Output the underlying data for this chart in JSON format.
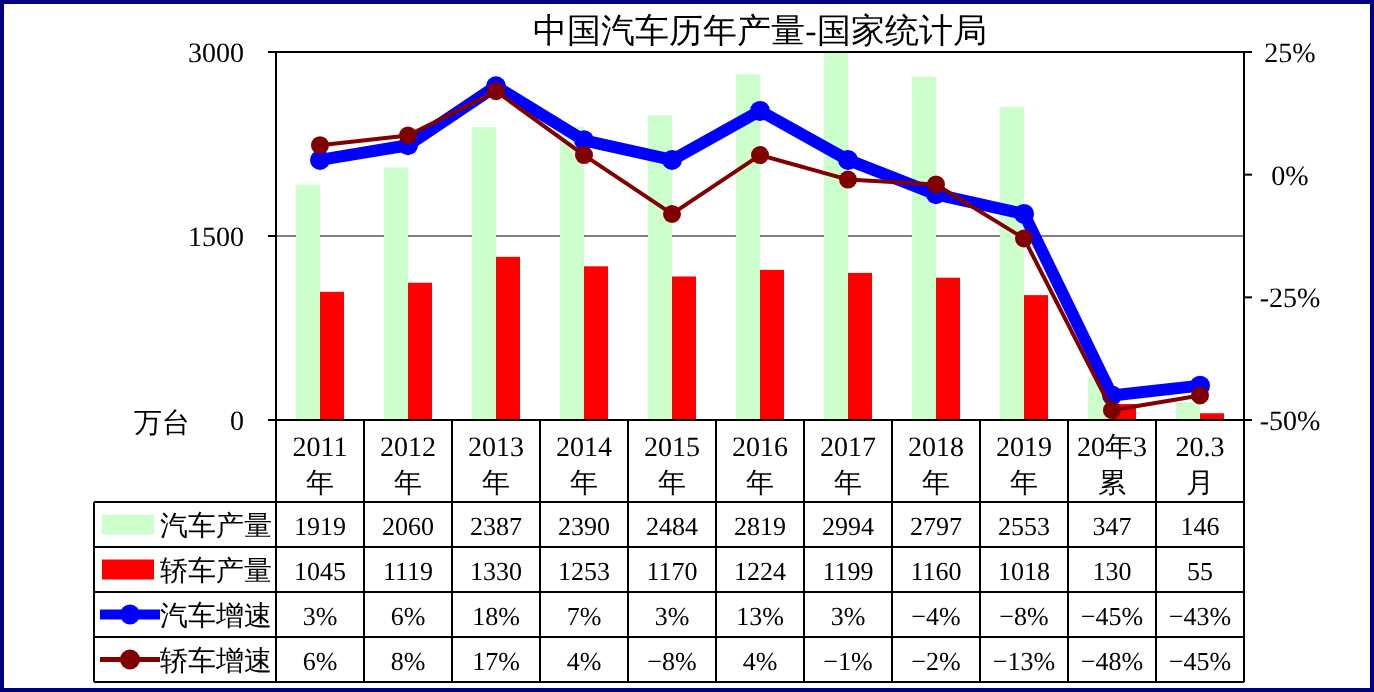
{
  "chart_data": {
    "type": "bar",
    "title": "中国汽车历年产量-国家统计局",
    "ylabel": "万台",
    "categories": [
      "2011年",
      "2012年",
      "2013年",
      "2014年",
      "2015年",
      "2016年",
      "2017年",
      "2018年",
      "2019年",
      "20年3累",
      "20.3月"
    ],
    "series": [
      {
        "name": "汽车产量",
        "color": "#ccffcc",
        "values": [
          1919,
          2060,
          2387,
          2390,
          2484,
          2819,
          2994,
          2797,
          2553,
          347,
          146
        ],
        "value_labels": [
          "1919",
          "2060",
          "2387",
          "2390",
          "2484",
          "2819",
          "2994",
          "2797",
          "2553",
          "347",
          "146"
        ]
      },
      {
        "name": "轿车产量",
        "color": "#ff0000",
        "values": [
          1045,
          1119,
          1330,
          1253,
          1170,
          1224,
          1199,
          1160,
          1018,
          130,
          55
        ],
        "value_labels": [
          "1045",
          "1119",
          "1330",
          "1253",
          "1170",
          "1224",
          "1199",
          "1160",
          "1018",
          "130",
          "55"
        ]
      },
      {
        "name": "汽车增速",
        "type": "line",
        "axis": "y2",
        "color": "#0000ff",
        "marker": "circle",
        "values": [
          3,
          6,
          18,
          7,
          3,
          13,
          3,
          -4,
          -8,
          -45,
          -43
        ],
        "value_labels": [
          "3%",
          "6%",
          "18%",
          "7%",
          "3%",
          "13%",
          "3%",
          "−4%",
          "−8%",
          "−45%",
          "−43%"
        ]
      },
      {
        "name": "轿车增速",
        "type": "line",
        "axis": "y2",
        "color": "#800000",
        "marker": "circle",
        "values": [
          6,
          8,
          17,
          4,
          -8,
          4,
          -1,
          -2,
          -13,
          -48,
          -45
        ],
        "value_labels": [
          "6%",
          "8%",
          "17%",
          "4%",
          "−8%",
          "4%",
          "−1%",
          "−2%",
          "−13%",
          "−48%",
          "−45%"
        ]
      }
    ],
    "ylim": [
      0,
      3000
    ],
    "yticks": [
      0,
      1500,
      3000
    ],
    "y2lim": [
      -50,
      25
    ],
    "y2ticks": [
      {
        "value": -50,
        "label": "-50%"
      },
      {
        "value": -25,
        "label": "-25%"
      },
      {
        "value": 0,
        "label": "0%"
      },
      {
        "value": 25,
        "label": "25%"
      }
    ],
    "grid": "y",
    "legend": "bottom"
  }
}
